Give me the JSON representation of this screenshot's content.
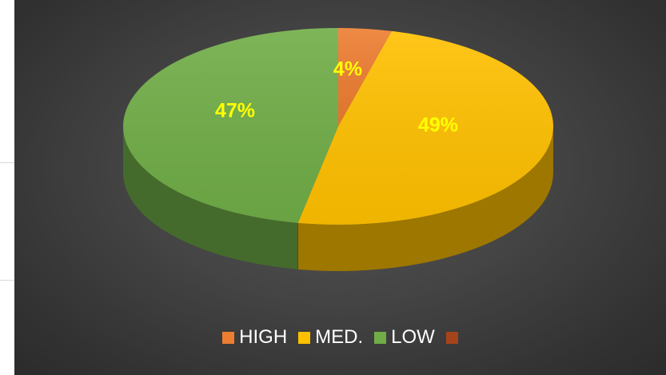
{
  "chart_data": {
    "type": "pie",
    "title": "",
    "slices": [
      {
        "label": "HIGH",
        "value": 4,
        "display": "4%",
        "color": "#ED7D31"
      },
      {
        "label": "MED.",
        "value": 49,
        "display": "49%",
        "color": "#FFC000"
      },
      {
        "label": "LOW",
        "value": 47,
        "display": "47%",
        "color": "#70AD47"
      },
      {
        "label": "",
        "value": 0,
        "display": "",
        "color": "#A5441B"
      }
    ],
    "legend_position": "bottom",
    "data_label_color": "#FFFF00",
    "background": "#3F3F3F"
  }
}
